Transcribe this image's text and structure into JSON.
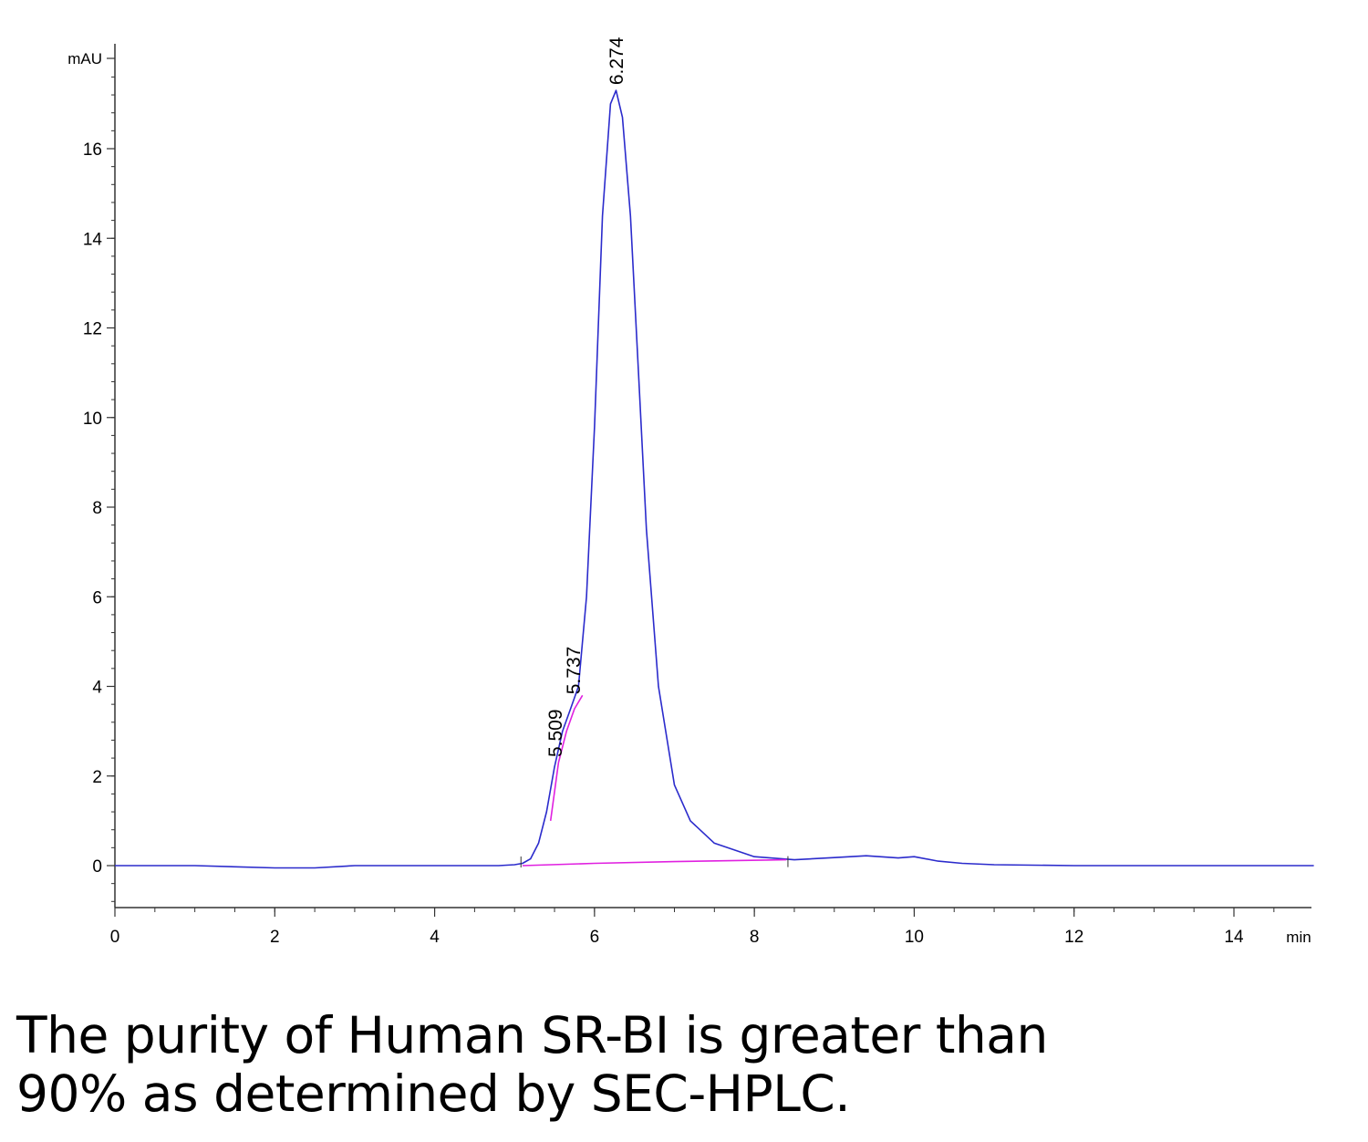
{
  "chart_data": {
    "type": "line",
    "title": "",
    "xlabel": "min",
    "ylabel": "mAU",
    "xlim": [
      0,
      15
    ],
    "ylim": [
      -1,
      18
    ],
    "x_ticks": [
      "0",
      "2",
      "4",
      "6",
      "8",
      "10",
      "12",
      "14"
    ],
    "y_ticks": [
      "0",
      "2",
      "4",
      "6",
      "8",
      "10",
      "12",
      "14",
      "16"
    ],
    "series": [
      {
        "color": "#2b2bcc",
        "x": [
          0,
          1,
          2,
          2.5,
          3,
          4,
          4.8,
          5.0,
          5.1,
          5.2,
          5.3,
          5.4,
          5.5,
          5.6,
          5.7,
          5.8,
          5.9,
          6.0,
          6.1,
          6.2,
          6.27,
          6.35,
          6.45,
          6.55,
          6.65,
          6.8,
          7.0,
          7.2,
          7.5,
          8.0,
          8.5,
          9.0,
          9.4,
          9.8,
          10.0,
          10.3,
          10.6,
          11.0,
          12.0,
          13.0,
          14.0,
          15.0
        ],
        "y": [
          0,
          0,
          -0.05,
          -0.05,
          0,
          0,
          0,
          0.02,
          0.05,
          0.15,
          0.5,
          1.2,
          2.2,
          3.0,
          3.5,
          4.0,
          6.0,
          9.8,
          14.5,
          17.0,
          17.3,
          16.7,
          14.5,
          11.0,
          7.5,
          4.0,
          1.8,
          1.0,
          0.5,
          0.2,
          0.13,
          0.18,
          0.22,
          0.17,
          0.2,
          0.1,
          0.05,
          0.02,
          0,
          0,
          0,
          0
        ]
      },
      {
        "color": "#e020e0",
        "x": [
          5.1,
          6.0,
          7.0,
          8.4
        ],
        "y": [
          0,
          0.05,
          0.09,
          0.13
        ]
      },
      {
        "color": "#e020e0",
        "x": [
          5.45,
          5.55,
          5.65,
          5.75,
          5.85
        ],
        "y": [
          1.0,
          2.3,
          3.0,
          3.5,
          3.8
        ]
      }
    ],
    "peaks": [
      {
        "x": 5.509,
        "label": "5.509",
        "y_top": 2.3
      },
      {
        "x": 5.737,
        "label": "5.737",
        "y_top": 3.7
      },
      {
        "x": 6.274,
        "label": "6.274",
        "y_top": 17.3
      }
    ],
    "grid": false,
    "legend": "none"
  },
  "caption": {
    "line1": "The purity of Human SR-BI is greater than",
    "line2": "90% as determined by SEC-HPLC."
  }
}
